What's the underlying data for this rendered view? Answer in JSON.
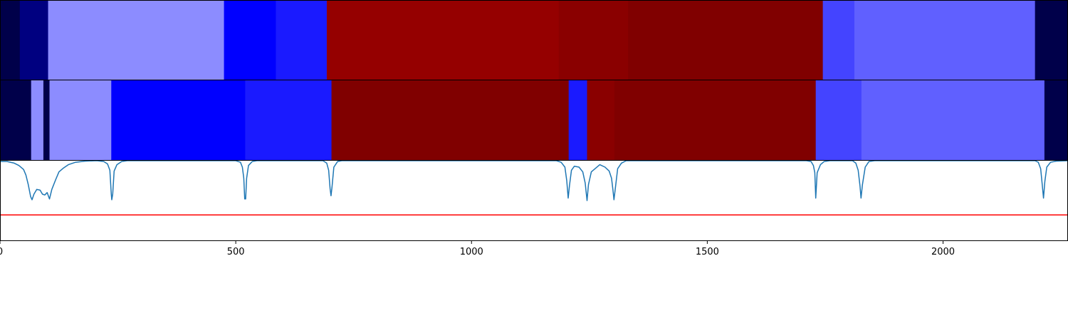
{
  "chart_data": [
    {
      "type": "heatmap",
      "title": "",
      "xlabel": "",
      "ylabel": "",
      "xlim": [
        0,
        2265
      ],
      "segments": [
        {
          "start": 0,
          "end": 42,
          "color": "#00004a"
        },
        {
          "start": 42,
          "end": 102,
          "color": "#000080"
        },
        {
          "start": 102,
          "end": 475,
          "color": "#8c8cff"
        },
        {
          "start": 475,
          "end": 585,
          "color": "#0000ff"
        },
        {
          "start": 585,
          "end": 693,
          "color": "#1a1aff"
        },
        {
          "start": 693,
          "end": 1185,
          "color": "#950000"
        },
        {
          "start": 1185,
          "end": 1332,
          "color": "#8a0000"
        },
        {
          "start": 1332,
          "end": 1745,
          "color": "#800000"
        },
        {
          "start": 1745,
          "end": 1812,
          "color": "#4444ff"
        },
        {
          "start": 1812,
          "end": 2195,
          "color": "#6060ff"
        },
        {
          "start": 2195,
          "end": 2265,
          "color": "#00004a"
        }
      ]
    },
    {
      "type": "heatmap",
      "title": "",
      "xlabel": "",
      "ylabel": "",
      "xlim": [
        0,
        2265
      ],
      "segments": [
        {
          "start": 0,
          "end": 66,
          "color": "#00004a"
        },
        {
          "start": 66,
          "end": 92,
          "color": "#8c8cff"
        },
        {
          "start": 92,
          "end": 105,
          "color": "#00004a"
        },
        {
          "start": 105,
          "end": 236,
          "color": "#8c8cff"
        },
        {
          "start": 236,
          "end": 520,
          "color": "#0000ff"
        },
        {
          "start": 520,
          "end": 703,
          "color": "#1a1aff"
        },
        {
          "start": 703,
          "end": 1206,
          "color": "#800000"
        },
        {
          "start": 1206,
          "end": 1245,
          "color": "#1a1aff"
        },
        {
          "start": 1245,
          "end": 1303,
          "color": "#8a0000"
        },
        {
          "start": 1303,
          "end": 1730,
          "color": "#800000"
        },
        {
          "start": 1730,
          "end": 1827,
          "color": "#4444ff"
        },
        {
          "start": 1827,
          "end": 2215,
          "color": "#6060ff"
        },
        {
          "start": 2215,
          "end": 2265,
          "color": "#00004a"
        }
      ]
    },
    {
      "type": "line",
      "title": "",
      "xlabel": "",
      "ylabel": "",
      "xlim": [
        0,
        2265
      ],
      "ylim": [
        0,
        1
      ],
      "xticks": [
        "0",
        "500",
        "1000",
        "1500",
        "2000"
      ],
      "xtick_values": [
        0,
        500,
        1000,
        1500,
        2000
      ],
      "series": [
        {
          "color": "#1f77b4",
          "points": [
            [
              0,
              0.99
            ],
            [
              15,
              0.99
            ],
            [
              30,
              0.97
            ],
            [
              40,
              0.94
            ],
            [
              50,
              0.89
            ],
            [
              55,
              0.82
            ],
            [
              60,
              0.7
            ],
            [
              65,
              0.55
            ],
            [
              68,
              0.51
            ],
            [
              72,
              0.58
            ],
            [
              78,
              0.64
            ],
            [
              85,
              0.63
            ],
            [
              90,
              0.58
            ],
            [
              95,
              0.57
            ],
            [
              100,
              0.6
            ],
            [
              105,
              0.52
            ],
            [
              110,
              0.64
            ],
            [
              118,
              0.76
            ],
            [
              125,
              0.86
            ],
            [
              135,
              0.91
            ],
            [
              145,
              0.95
            ],
            [
              160,
              0.98
            ],
            [
              180,
              0.995
            ],
            [
              205,
              1.0
            ],
            [
              220,
              0.99
            ],
            [
              228,
              0.96
            ],
            [
              233,
              0.88
            ],
            [
              236,
              0.58
            ],
            [
              237,
              0.51
            ],
            [
              239,
              0.58
            ],
            [
              242,
              0.87
            ],
            [
              248,
              0.95
            ],
            [
              258,
              0.99
            ],
            [
              270,
              1.0
            ],
            [
              500,
              1.0
            ],
            [
              510,
              0.98
            ],
            [
              514,
              0.92
            ],
            [
              517,
              0.78
            ],
            [
              519,
              0.52
            ],
            [
              521,
              0.52
            ],
            [
              523,
              0.78
            ],
            [
              527,
              0.94
            ],
            [
              535,
              0.99
            ],
            [
              545,
              1.0
            ],
            [
              685,
              1.0
            ],
            [
              693,
              0.97
            ],
            [
              697,
              0.88
            ],
            [
              700,
              0.65
            ],
            [
              702,
              0.56
            ],
            [
              704,
              0.66
            ],
            [
              708,
              0.92
            ],
            [
              716,
              0.99
            ],
            [
              725,
              1.0
            ],
            [
              1180,
              1.0
            ],
            [
              1190,
              0.98
            ],
            [
              1198,
              0.92
            ],
            [
              1202,
              0.75
            ],
            [
              1205,
              0.53
            ],
            [
              1208,
              0.7
            ],
            [
              1212,
              0.88
            ],
            [
              1218,
              0.93
            ],
            [
              1228,
              0.92
            ],
            [
              1236,
              0.86
            ],
            [
              1241,
              0.72
            ],
            [
              1245,
              0.5
            ],
            [
              1248,
              0.7
            ],
            [
              1254,
              0.86
            ],
            [
              1262,
              0.9
            ],
            [
              1272,
              0.95
            ],
            [
              1283,
              0.92
            ],
            [
              1292,
              0.87
            ],
            [
              1297,
              0.78
            ],
            [
              1300,
              0.63
            ],
            [
              1302,
              0.51
            ],
            [
              1305,
              0.65
            ],
            [
              1310,
              0.9
            ],
            [
              1318,
              0.97
            ],
            [
              1328,
              1.0
            ],
            [
              1710,
              1.0
            ],
            [
              1720,
              0.99
            ],
            [
              1725,
              0.94
            ],
            [
              1728,
              0.85
            ],
            [
              1730,
              0.53
            ],
            [
              1733,
              0.85
            ],
            [
              1740,
              0.95
            ],
            [
              1748,
              0.99
            ],
            [
              1760,
              1.0
            ],
            [
              1808,
              1.0
            ],
            [
              1815,
              0.97
            ],
            [
              1820,
              0.88
            ],
            [
              1824,
              0.68
            ],
            [
              1826,
              0.53
            ],
            [
              1829,
              0.7
            ],
            [
              1835,
              0.92
            ],
            [
              1843,
              0.99
            ],
            [
              1855,
              1.0
            ],
            [
              2195,
              1.0
            ],
            [
              2202,
              0.98
            ],
            [
              2207,
              0.9
            ],
            [
              2210,
              0.72
            ],
            [
              2213,
              0.53
            ],
            [
              2216,
              0.74
            ],
            [
              2220,
              0.92
            ],
            [
              2228,
              0.98
            ],
            [
              2240,
              0.995
            ],
            [
              2265,
              1.0
            ]
          ]
        },
        {
          "color": "#ff0000",
          "points": [
            [
              0,
              0.32
            ],
            [
              2265,
              0.32
            ]
          ]
        }
      ]
    }
  ]
}
